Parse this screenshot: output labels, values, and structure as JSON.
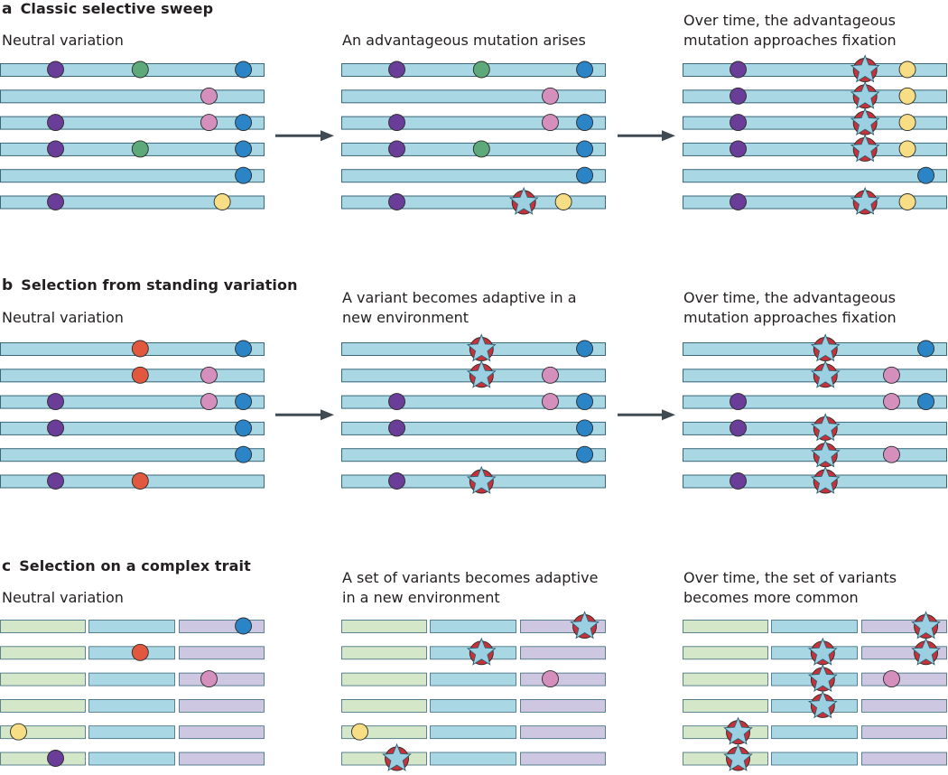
{
  "panels": [
    {
      "letter": "a",
      "title": "Classic selective sweep",
      "type": "single",
      "stages": [
        {
          "caption": [
            "Neutral variation"
          ],
          "rows": [
            [
              {
                "c": "purple",
                "p": 0.21
              },
              {
                "c": "green",
                "p": 0.53
              },
              {
                "c": "blue",
                "p": 0.92
              }
            ],
            [
              {
                "c": "pink",
                "p": 0.79
              }
            ],
            [
              {
                "c": "purple",
                "p": 0.21
              },
              {
                "c": "pink",
                "p": 0.79
              },
              {
                "c": "blue",
                "p": 0.92
              }
            ],
            [
              {
                "c": "purple",
                "p": 0.21
              },
              {
                "c": "green",
                "p": 0.53
              },
              {
                "c": "blue",
                "p": 0.92
              }
            ],
            [
              {
                "c": "blue",
                "p": 0.92
              }
            ],
            [
              {
                "c": "purple",
                "p": 0.21
              },
              {
                "c": "yellow",
                "p": 0.84
              }
            ]
          ]
        },
        {
          "caption": [
            "An advantageous mutation arises"
          ],
          "rows": [
            [
              {
                "c": "purple",
                "p": 0.21
              },
              {
                "c": "green",
                "p": 0.53
              },
              {
                "c": "blue",
                "p": 0.92
              }
            ],
            [
              {
                "c": "pink",
                "p": 0.79
              }
            ],
            [
              {
                "c": "purple",
                "p": 0.21
              },
              {
                "c": "pink",
                "p": 0.79
              },
              {
                "c": "blue",
                "p": 0.92
              }
            ],
            [
              {
                "c": "purple",
                "p": 0.21
              },
              {
                "c": "green",
                "p": 0.53
              },
              {
                "c": "blue",
                "p": 0.92
              }
            ],
            [
              {
                "c": "blue",
                "p": 0.92
              }
            ],
            [
              {
                "c": "purple",
                "p": 0.21
              },
              {
                "c": "star",
                "p": 0.69
              },
              {
                "c": "yellow",
                "p": 0.84
              }
            ]
          ]
        },
        {
          "caption": [
            "Over time, the advantageous",
            "mutation approaches fixation"
          ],
          "rows": [
            [
              {
                "c": "purple",
                "p": 0.21
              },
              {
                "c": "star",
                "p": 0.69
              },
              {
                "c": "yellow",
                "p": 0.85
              }
            ],
            [
              {
                "c": "purple",
                "p": 0.21
              },
              {
                "c": "star",
                "p": 0.69
              },
              {
                "c": "yellow",
                "p": 0.85
              }
            ],
            [
              {
                "c": "purple",
                "p": 0.21
              },
              {
                "c": "star",
                "p": 0.69
              },
              {
                "c": "yellow",
                "p": 0.85
              }
            ],
            [
              {
                "c": "purple",
                "p": 0.21
              },
              {
                "c": "star",
                "p": 0.69
              },
              {
                "c": "yellow",
                "p": 0.85
              }
            ],
            [
              {
                "c": "blue",
                "p": 0.92
              }
            ],
            [
              {
                "c": "purple",
                "p": 0.21
              },
              {
                "c": "star",
                "p": 0.69
              },
              {
                "c": "yellow",
                "p": 0.85
              }
            ]
          ]
        }
      ]
    },
    {
      "letter": "b",
      "title": "Selection from standing variation",
      "type": "single",
      "stages": [
        {
          "caption": [
            "Neutral variation"
          ],
          "rows": [
            [
              {
                "c": "red",
                "p": 0.53
              },
              {
                "c": "blue",
                "p": 0.92
              }
            ],
            [
              {
                "c": "red",
                "p": 0.53
              },
              {
                "c": "pink",
                "p": 0.79
              }
            ],
            [
              {
                "c": "purple",
                "p": 0.21
              },
              {
                "c": "pink",
                "p": 0.79
              },
              {
                "c": "blue",
                "p": 0.92
              }
            ],
            [
              {
                "c": "purple",
                "p": 0.21
              },
              {
                "c": "blue",
                "p": 0.92
              }
            ],
            [
              {
                "c": "blue",
                "p": 0.92
              }
            ],
            [
              {
                "c": "purple",
                "p": 0.21
              },
              {
                "c": "red",
                "p": 0.53
              }
            ]
          ]
        },
        {
          "caption": [
            "A variant becomes adaptive in a",
            "new environment"
          ],
          "rows": [
            [
              {
                "c": "star",
                "p": 0.53
              },
              {
                "c": "blue",
                "p": 0.92
              }
            ],
            [
              {
                "c": "star",
                "p": 0.53
              },
              {
                "c": "pink",
                "p": 0.79
              }
            ],
            [
              {
                "c": "purple",
                "p": 0.21
              },
              {
                "c": "pink",
                "p": 0.79
              },
              {
                "c": "blue",
                "p": 0.92
              }
            ],
            [
              {
                "c": "purple",
                "p": 0.21
              },
              {
                "c": "blue",
                "p": 0.92
              }
            ],
            [
              {
                "c": "blue",
                "p": 0.92
              }
            ],
            [
              {
                "c": "purple",
                "p": 0.21
              },
              {
                "c": "star",
                "p": 0.53
              }
            ]
          ]
        },
        {
          "caption": [
            "Over time, the advantageous",
            "mutation approaches fixation"
          ],
          "rows": [
            [
              {
                "c": "star",
                "p": 0.54
              },
              {
                "c": "blue",
                "p": 0.92
              }
            ],
            [
              {
                "c": "star",
                "p": 0.54
              },
              {
                "c": "pink",
                "p": 0.79
              }
            ],
            [
              {
                "c": "purple",
                "p": 0.21
              },
              {
                "c": "pink",
                "p": 0.79
              },
              {
                "c": "blue",
                "p": 0.92
              }
            ],
            [
              {
                "c": "purple",
                "p": 0.21
              },
              {
                "c": "star",
                "p": 0.54
              }
            ],
            [
              {
                "c": "star",
                "p": 0.54
              },
              {
                "c": "pink",
                "p": 0.79
              }
            ],
            [
              {
                "c": "purple",
                "p": 0.21
              },
              {
                "c": "star",
                "p": 0.54
              }
            ]
          ]
        }
      ]
    },
    {
      "letter": "c",
      "title": "Selection on a complex trait",
      "type": "segmented",
      "stages": [
        {
          "caption": [
            "Neutral variation"
          ],
          "rows": [
            [
              {
                "c": "blue",
                "p": 0.92
              }
            ],
            [
              {
                "c": "red",
                "p": 0.53
              }
            ],
            [
              {
                "c": "pink",
                "p": 0.79
              }
            ],
            [],
            [
              {
                "c": "yellow",
                "p": 0.07
              }
            ],
            [
              {
                "c": "purple",
                "p": 0.21
              }
            ]
          ]
        },
        {
          "caption": [
            "A set of variants becomes adaptive",
            "in a new environment"
          ],
          "rows": [
            [
              {
                "c": "star",
                "p": 0.92
              }
            ],
            [
              {
                "c": "star",
                "p": 0.53
              }
            ],
            [
              {
                "c": "pink",
                "p": 0.79
              }
            ],
            [],
            [
              {
                "c": "yellow",
                "p": 0.07
              }
            ],
            [
              {
                "c": "star",
                "p": 0.21
              }
            ]
          ]
        },
        {
          "caption": [
            "Over time, the set of variants",
            "becomes more common"
          ],
          "rows": [
            [
              {
                "c": "star",
                "p": 0.92
              }
            ],
            [
              {
                "c": "star",
                "p": 0.53
              },
              {
                "c": "star",
                "p": 0.92
              }
            ],
            [
              {
                "c": "star",
                "p": 0.53
              },
              {
                "c": "pink",
                "p": 0.79
              }
            ],
            [
              {
                "c": "star",
                "p": 0.53
              }
            ],
            [
              {
                "c": "star",
                "p": 0.21
              }
            ],
            [
              {
                "c": "star",
                "p": 0.21
              }
            ]
          ]
        }
      ]
    }
  ],
  "colors": {
    "chromosome": "#a9d7e4",
    "chromosome_edge": "#3a6779",
    "seg_green": "#d4e8c9",
    "seg_blue": "#a9d7e4",
    "seg_purple": "#cdc7e2",
    "arrow": "#3f4a52",
    "purple": "#6a3d98",
    "green": "#5ea97a",
    "blue": "#2a84c6",
    "pink": "#d58fbd",
    "yellow": "#f7de84",
    "red": "#e2583f",
    "star_fill": "#9ad0e2",
    "star_disc": "#c7323a"
  }
}
